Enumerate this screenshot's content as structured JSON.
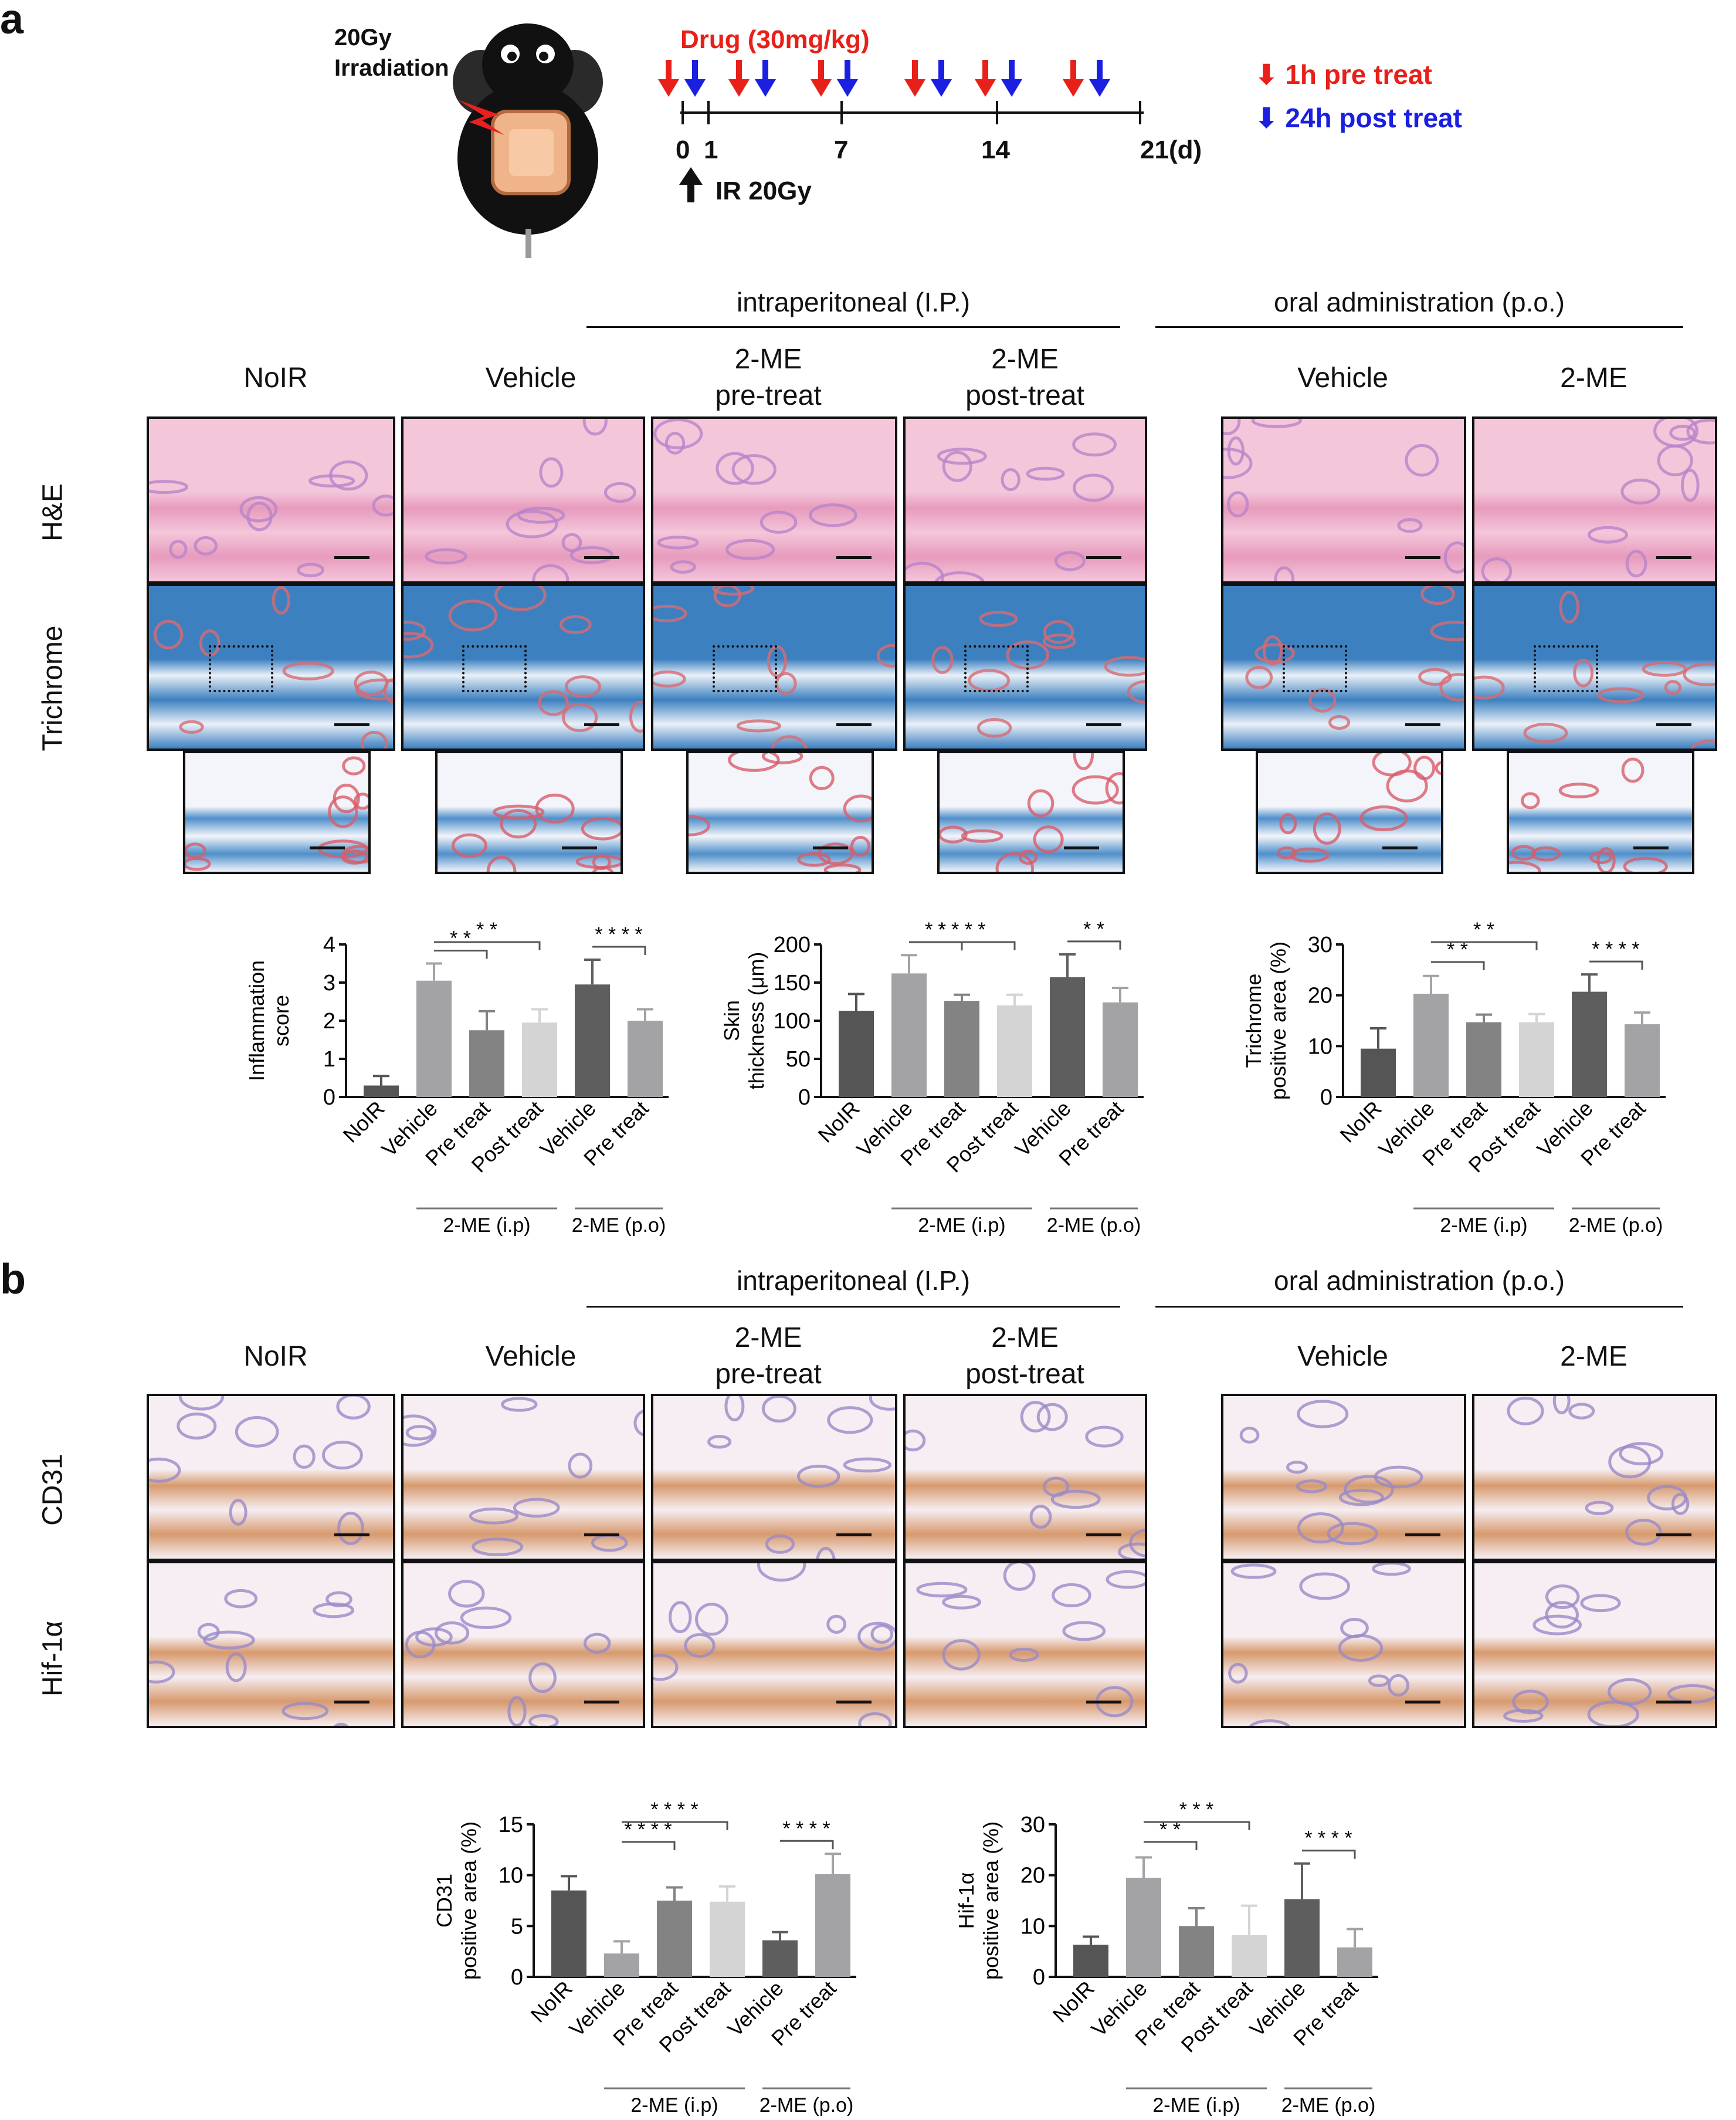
{
  "panel_a": {
    "letter": "a",
    "irradiation_label": [
      "20Gy",
      "Irradiation"
    ],
    "drug_label": "Drug (30mg/kg)",
    "timeline_ticks": [
      "0",
      "1",
      "7",
      "14",
      "21(d)"
    ],
    "ir_label": "IR 20Gy",
    "legend_pre": "1h pre treat",
    "legend_post": "24h post treat",
    "colors": {
      "pre": "#e8201a",
      "post": "#1a1fe0"
    },
    "group_ip": "intraperitoneal (I.P.)",
    "group_po": "oral administration (p.o.)",
    "columns": [
      {
        "label": [
          "NoIR"
        ]
      },
      {
        "label": [
          "Vehicle"
        ]
      },
      {
        "label": [
          "2-ME",
          "pre-treat"
        ]
      },
      {
        "label": [
          "2-ME",
          "post-treat"
        ]
      },
      {
        "label": [
          "Vehicle"
        ]
      },
      {
        "label": [
          "2-ME"
        ]
      }
    ],
    "rows": [
      "H&E",
      "Trichrome"
    ]
  },
  "panel_b": {
    "letter": "b",
    "group_ip": "intraperitoneal (I.P.)",
    "group_po": "oral administration (p.o.)",
    "columns": [
      {
        "label": [
          "NoIR"
        ]
      },
      {
        "label": [
          "Vehicle"
        ]
      },
      {
        "label": [
          "2-ME",
          "pre-treat"
        ]
      },
      {
        "label": [
          "2-ME",
          "post-treat"
        ]
      },
      {
        "label": [
          "Vehicle"
        ]
      },
      {
        "label": [
          "2-ME"
        ]
      }
    ],
    "rows": [
      "CD31",
      "Hif-1α"
    ]
  },
  "chart_data": [
    {
      "id": "inflammation",
      "type": "bar",
      "ylabel": [
        "Inflammation",
        "score"
      ],
      "ylim": [
        0,
        4
      ],
      "yticks": [
        0,
        1,
        2,
        3,
        4
      ],
      "categories": [
        "NoIR",
        "Vehicle",
        "Pre treat",
        "Post treat",
        "Vehicle",
        "Pre treat"
      ],
      "values": [
        0.3,
        3.05,
        1.75,
        1.95,
        2.95,
        2.0
      ],
      "errors": [
        0.25,
        0.45,
        0.5,
        0.35,
        0.65,
        0.3
      ],
      "colors": [
        "#555555",
        "#a3a3a6",
        "#838383",
        "#d4d4d4",
        "#5e5e5e",
        "#a3a3a6"
      ],
      "group_labels": [
        "2-ME (i.p)",
        "2-ME (p.o)"
      ],
      "significance": [
        {
          "from": 1,
          "to": 2,
          "label": "* *"
        },
        {
          "from": 1,
          "to": 3,
          "label": "* *"
        },
        {
          "from": 4,
          "to": 5,
          "label": "* * * *"
        }
      ]
    },
    {
      "id": "thickness",
      "type": "bar",
      "ylabel": [
        "Skin",
        "thickness (μm)"
      ],
      "ylim": [
        0,
        200
      ],
      "yticks": [
        0,
        50,
        100,
        150,
        200
      ],
      "categories": [
        "NoIR",
        "Vehicle",
        "Pre treat",
        "Post treat",
        "Vehicle",
        "Pre treat"
      ],
      "values": [
        113,
        162,
        126,
        120,
        157,
        124
      ],
      "errors": [
        22,
        24,
        8,
        14,
        30,
        19
      ],
      "colors": [
        "#555555",
        "#a3a3a6",
        "#838383",
        "#d4d4d4",
        "#5e5e5e",
        "#a3a3a6"
      ],
      "group_labels": [
        "2-ME (i.p)",
        "2-ME (p.o)"
      ],
      "significance": [
        {
          "from": 1,
          "to": 2,
          "label": "* *"
        },
        {
          "from": 1,
          "to": 3,
          "label": "* * * *"
        },
        {
          "from": 4,
          "to": 5,
          "label": "* *"
        }
      ]
    },
    {
      "id": "trichrome",
      "type": "bar",
      "ylabel": [
        "Trichrome",
        "positive area (%)"
      ],
      "ylim": [
        0,
        30
      ],
      "yticks": [
        0,
        10,
        20,
        30
      ],
      "categories": [
        "NoIR",
        "Vehicle",
        "Pre treat",
        "Post treat",
        "Vehicle",
        "Pre treat"
      ],
      "values": [
        9.5,
        20.3,
        14.7,
        14.7,
        20.7,
        14.3
      ],
      "errors": [
        4.0,
        3.5,
        1.5,
        1.6,
        3.4,
        2.3
      ],
      "colors": [
        "#555555",
        "#a3a3a6",
        "#838383",
        "#d4d4d4",
        "#5e5e5e",
        "#a3a3a6"
      ],
      "group_labels": [
        "2-ME (i.p)",
        "2-ME (p.o)"
      ],
      "significance": [
        {
          "from": 1,
          "to": 2,
          "label": "* *"
        },
        {
          "from": 1,
          "to": 3,
          "label": "* *"
        },
        {
          "from": 4,
          "to": 5,
          "label": "* * * *"
        }
      ]
    },
    {
      "id": "cd31",
      "type": "bar",
      "ylabel": [
        "CD31",
        "positive area (%)"
      ],
      "ylim": [
        0,
        15
      ],
      "yticks": [
        0,
        5,
        10,
        15
      ],
      "categories": [
        "NoIR",
        "Vehicle",
        "Pre treat",
        "Post treat",
        "Vehicle",
        "Pre treat"
      ],
      "values": [
        8.5,
        2.3,
        7.5,
        7.4,
        3.6,
        10.1
      ],
      "errors": [
        1.4,
        1.2,
        1.3,
        1.5,
        0.8,
        2.0
      ],
      "colors": [
        "#555555",
        "#a3a3a6",
        "#838383",
        "#d4d4d4",
        "#5e5e5e",
        "#a3a3a6"
      ],
      "group_labels": [
        "2-ME (i.p)",
        "2-ME (p.o)"
      ],
      "significance": [
        {
          "from": 1,
          "to": 2,
          "label": "* * * *"
        },
        {
          "from": 1,
          "to": 3,
          "label": "* * * *"
        },
        {
          "from": 4,
          "to": 5,
          "label": "* * * *"
        }
      ]
    },
    {
      "id": "hif",
      "type": "bar",
      "ylabel": [
        "Hif-1α",
        "positive area (%)"
      ],
      "ylim": [
        0,
        30
      ],
      "yticks": [
        0,
        10,
        20,
        30
      ],
      "categories": [
        "NoIR",
        "Vehicle",
        "Pre treat",
        "Post treat",
        "Vehicle",
        "Pre treat"
      ],
      "values": [
        6.3,
        19.5,
        10.0,
        8.2,
        15.3,
        5.8
      ],
      "errors": [
        1.6,
        4.0,
        3.5,
        5.8,
        7.0,
        3.6
      ],
      "colors": [
        "#555555",
        "#a3a3a6",
        "#838383",
        "#d4d4d4",
        "#5e5e5e",
        "#a3a3a6"
      ],
      "group_labels": [
        "2-ME (i.p)",
        "2-ME (p.o)"
      ],
      "significance": [
        {
          "from": 1,
          "to": 2,
          "label": "* *"
        },
        {
          "from": 1,
          "to": 3,
          "label": "* * *"
        },
        {
          "from": 4,
          "to": 5,
          "label": "* * * *"
        }
      ]
    }
  ],
  "tile_styles": {
    "he": {
      "base": "#f4c6da",
      "band": "#e79bbd",
      "spot": "#b983c9"
    },
    "tri": {
      "base": "#3c80c0",
      "band": "#eaf0f7",
      "spot": "#d86a72"
    },
    "tri_zoom": {
      "base": "#f3f5fa",
      "band": "#4f8fca",
      "spot": "#d85c6a"
    },
    "ihc": {
      "base": "#f6eef2",
      "band": "#d79a6e",
      "spot": "#9a8ac8"
    }
  }
}
